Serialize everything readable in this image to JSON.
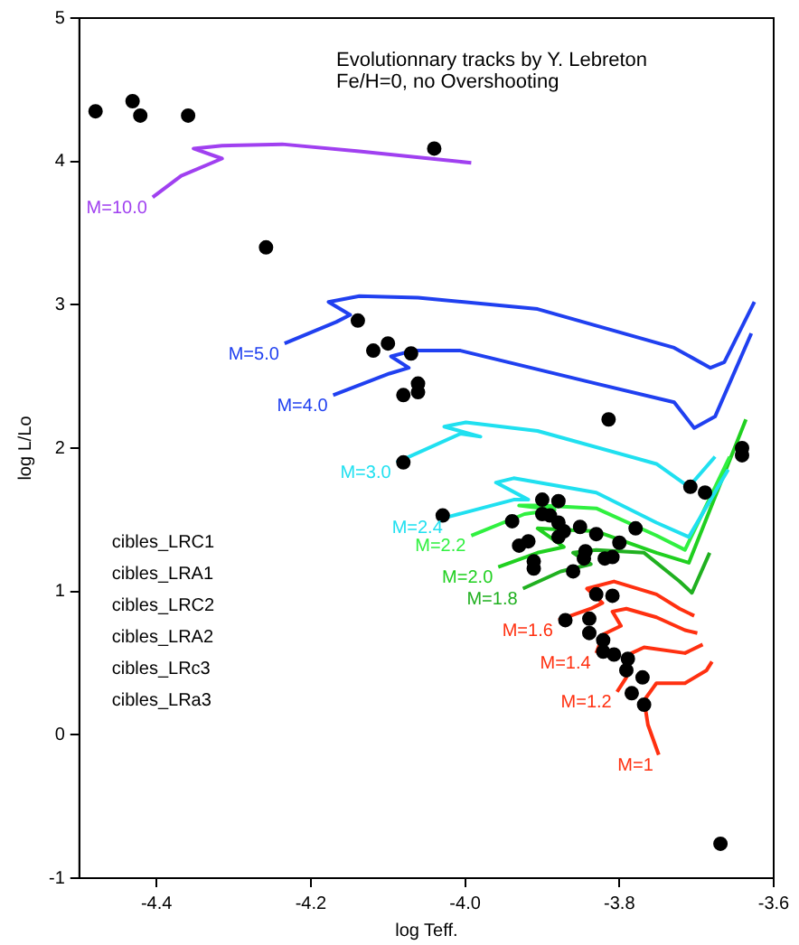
{
  "chart_data": {
    "type": "line",
    "title": "Evolutionnary tracks by Y. Lebreton",
    "subtitle": "Fe/H=0, no Overshooting",
    "xlabel": "log Teff.",
    "ylabel": "log L/Lo",
    "xlim": [
      -4.5,
      -3.6
    ],
    "xticks": [
      -4.4,
      -4.2,
      {
        "value": -4,
        "label": "-4.0"
      },
      -3.8,
      -3.6
    ],
    "ylim": [
      -1,
      5
    ],
    "yticks": [
      -1,
      0,
      1,
      2,
      3,
      4,
      5
    ],
    "legend": false,
    "line_style": "solid",
    "annotations": [
      "cibles_LRC1",
      "cibles_LRA1",
      "cibles_LRC2",
      "cibles_LRA2",
      "cibles_LRc3",
      "cibles_LRa3"
    ],
    "series": [
      {
        "name": "M=10.0",
        "color": "#a040f0",
        "x": [
          -4.405,
          -4.368,
          -4.315,
          -4.352,
          -4.315,
          -4.237,
          -4.137,
          -3.992
        ],
        "values": [
          3.75,
          3.9,
          4.02,
          4.09,
          4.11,
          4.12,
          4.07,
          3.99
        ]
      },
      {
        "name": "M=5.0",
        "color": "#2040f0",
        "x": [
          -4.234,
          -4.167,
          -4.149,
          -4.177,
          -4.137,
          -4.061,
          -3.906,
          -3.729,
          -3.682,
          -3.664,
          -3.625
        ],
        "values": [
          2.73,
          2.88,
          2.93,
          3.02,
          3.06,
          3.05,
          2.97,
          2.7,
          2.56,
          2.6,
          3.02
        ]
      },
      {
        "name": "M=4.0",
        "color": "#2040f0",
        "x": [
          -4.171,
          -4.098,
          -4.073,
          -4.096,
          -4.068,
          -4.006,
          -3.83,
          -3.729,
          -3.703,
          -3.676,
          -3.629
        ],
        "values": [
          2.37,
          2.52,
          2.56,
          2.64,
          2.68,
          2.68,
          2.45,
          2.32,
          2.14,
          2.22,
          2.8
        ]
      },
      {
        "name": "M=3.0",
        "color": "#20e0f0",
        "x": [
          -4.089,
          -4.006,
          -3.98,
          -4.027,
          -3.999,
          -3.906,
          -3.752,
          -3.71,
          -3.676
        ],
        "values": [
          1.9,
          2.1,
          2.08,
          2.15,
          2.18,
          2.12,
          1.89,
          1.73,
          1.94
        ]
      },
      {
        "name": "M=2.4",
        "color": "#20e0f0",
        "x": [
          -4.022,
          -3.937,
          -3.918,
          -3.96,
          -3.937,
          -3.83,
          -3.752,
          -3.71,
          -3.659
        ],
        "values": [
          1.52,
          1.64,
          1.64,
          1.76,
          1.79,
          1.69,
          1.48,
          1.38,
          1.85
        ]
      },
      {
        "name": "M=2.2",
        "color": "#30f040",
        "x": [
          -3.992,
          -3.923,
          -3.884,
          -3.93,
          -3.9,
          -3.83,
          -3.752,
          -3.715,
          -3.657
        ],
        "values": [
          1.39,
          1.54,
          1.57,
          1.6,
          1.6,
          1.58,
          1.39,
          1.29,
          1.94
        ]
      },
      {
        "name": "M=2.0",
        "color": "#20d020",
        "x": [
          -3.957,
          -3.906,
          -3.872,
          -3.906,
          -3.87,
          -3.83,
          -3.752,
          -3.71,
          -3.636
        ],
        "values": [
          1.17,
          1.27,
          1.31,
          1.44,
          1.43,
          1.42,
          1.27,
          1.2,
          2.2
        ]
      },
      {
        "name": "M=1.8",
        "color": "#20b020",
        "x": [
          -3.925,
          -3.876,
          -3.837,
          -3.86,
          -3.83,
          -3.768,
          -3.722,
          -3.706,
          -3.683
        ],
        "values": [
          1.02,
          1.14,
          1.19,
          1.27,
          1.29,
          1.27,
          1.07,
          0.99,
          1.27
        ]
      },
      {
        "name": "M=1.6",
        "color": "#ff3010",
        "x": [
          -3.879,
          -3.837,
          -3.822,
          -3.842,
          -3.807,
          -3.752,
          -3.722,
          -3.703
        ],
        "values": [
          0.8,
          0.88,
          0.92,
          1.02,
          1.07,
          0.98,
          0.88,
          0.83
        ]
      },
      {
        "name": "M=1.4",
        "color": "#ff3010",
        "x": [
          -3.83,
          -3.821,
          -3.798,
          -3.809,
          -3.791,
          -3.752,
          -3.715,
          -3.699
        ],
        "values": [
          0.57,
          0.7,
          0.76,
          0.86,
          0.88,
          0.82,
          0.73,
          0.71
        ]
      },
      {
        "name": "M=1.2",
        "color": "#ff3010",
        "x": [
          -3.803,
          -3.791,
          -3.784,
          -3.768,
          -3.715,
          -3.692
        ],
        "values": [
          0.3,
          0.4,
          0.57,
          0.61,
          0.57,
          0.63
        ]
      },
      {
        "name": "M=1",
        "color": "#ff3010",
        "x": [
          -3.749,
          -3.763,
          -3.768,
          -3.752,
          -3.715,
          -3.687,
          -3.68
        ],
        "values": [
          -0.14,
          0.07,
          0.24,
          0.36,
          0.36,
          0.45,
          0.51
        ]
      },
      {
        "type": "scatter",
        "color": "#000000",
        "marker": "circle",
        "x": [
          -4.479,
          -4.431,
          -4.421,
          -4.359,
          -4.04,
          -4.258,
          -4.139,
          -4.119,
          -4.1,
          -4.07,
          -4.08,
          -4.061,
          -4.061,
          -3.814,
          -4.08,
          -3.708,
          -3.689,
          -3.641,
          -3.641,
          -4.029,
          -3.9,
          -3.879,
          -3.9,
          -3.89,
          -3.939,
          -3.879,
          -3.851,
          -3.83,
          -3.8,
          -3.779,
          -3.872,
          -3.879,
          -3.918,
          -3.93,
          -3.844,
          -3.846,
          -3.819,
          -3.809,
          -3.86,
          -3.911,
          -3.911,
          -3.83,
          -3.809,
          -3.87,
          -3.839,
          -3.839,
          -3.821,
          -3.821,
          -3.807,
          -3.789,
          -3.791,
          -3.77,
          -3.784,
          -3.768,
          -3.669
        ],
        "values": [
          4.35,
          4.42,
          4.32,
          4.32,
          4.09,
          3.4,
          2.89,
          2.68,
          2.73,
          2.66,
          2.37,
          2.45,
          2.39,
          2.2,
          1.9,
          1.73,
          1.69,
          2.0,
          1.95,
          1.53,
          1.64,
          1.63,
          1.54,
          1.53,
          1.49,
          1.48,
          1.45,
          1.4,
          1.34,
          1.44,
          1.42,
          1.38,
          1.35,
          1.32,
          1.28,
          1.23,
          1.23,
          1.24,
          1.14,
          1.21,
          1.16,
          0.98,
          0.97,
          0.8,
          0.81,
          0.71,
          0.66,
          0.58,
          0.56,
          0.53,
          0.45,
          0.4,
          0.29,
          0.21,
          -0.76
        ]
      }
    ]
  }
}
